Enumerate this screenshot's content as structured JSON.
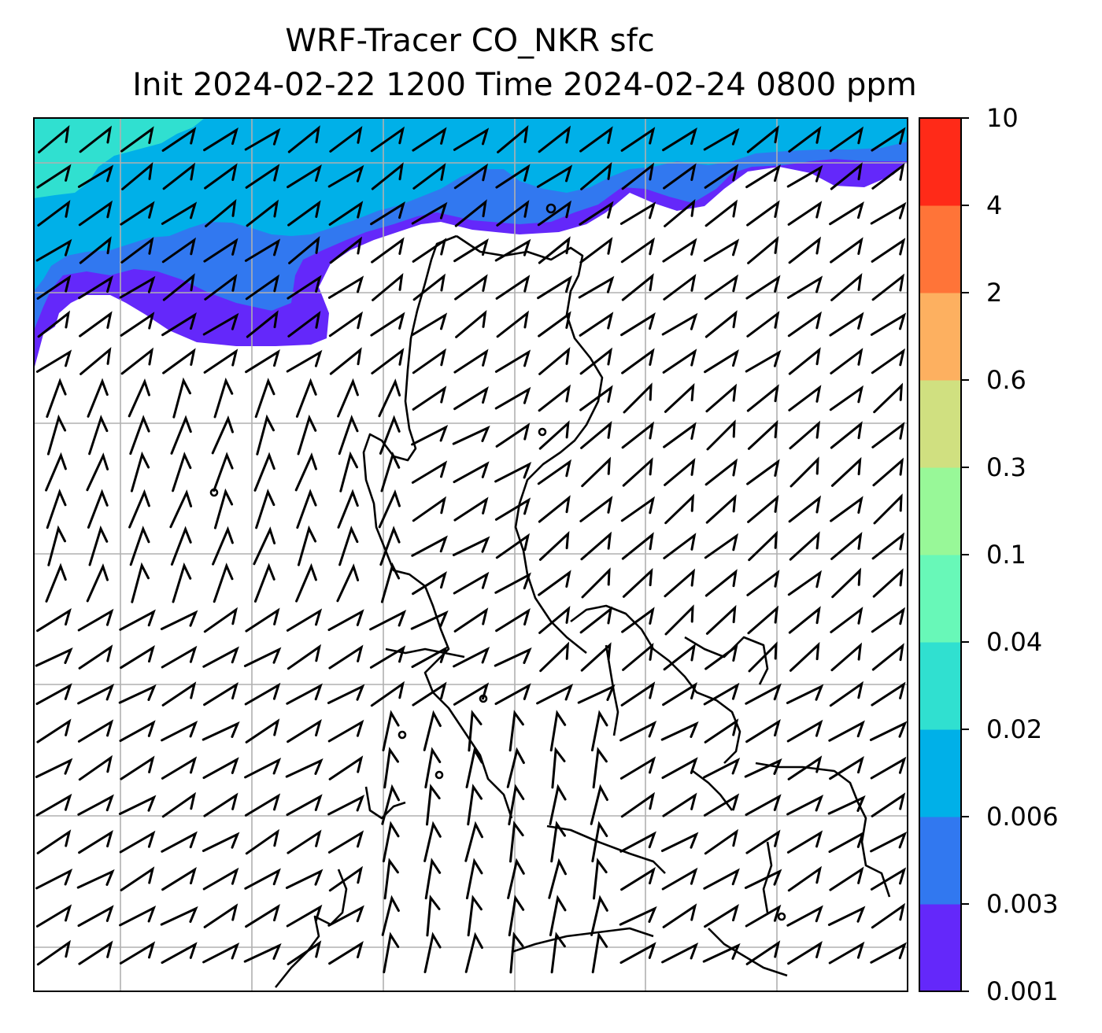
{
  "title": "WRF-Tracer CO_NKR sfc",
  "subtitle": "Init 2024-02-22 1200 Time 2024-02-24 0800 ppm",
  "colorbar": {
    "ticks": [
      "0.001",
      "0.003",
      "0.006",
      "0.02",
      "0.04",
      "0.1",
      "0.3",
      "0.6",
      "2",
      "4",
      "10"
    ],
    "colors": [
      "#6428fa",
      "#3178f0",
      "#00b0e8",
      "#30e0d0",
      "#68f8b8",
      "#98f898",
      "#d0e080",
      "#fdb060",
      "#ff7438",
      "#ff2a18"
    ]
  },
  "map": {
    "grid": true,
    "plume_colors": {
      "level_0001": "#6428fa",
      "level_0003": "#3178f0",
      "level_0006": "#00b0e8",
      "level_002": "#30e0d0"
    },
    "wind_barbs": "black",
    "coastline_color": "#000000"
  }
}
